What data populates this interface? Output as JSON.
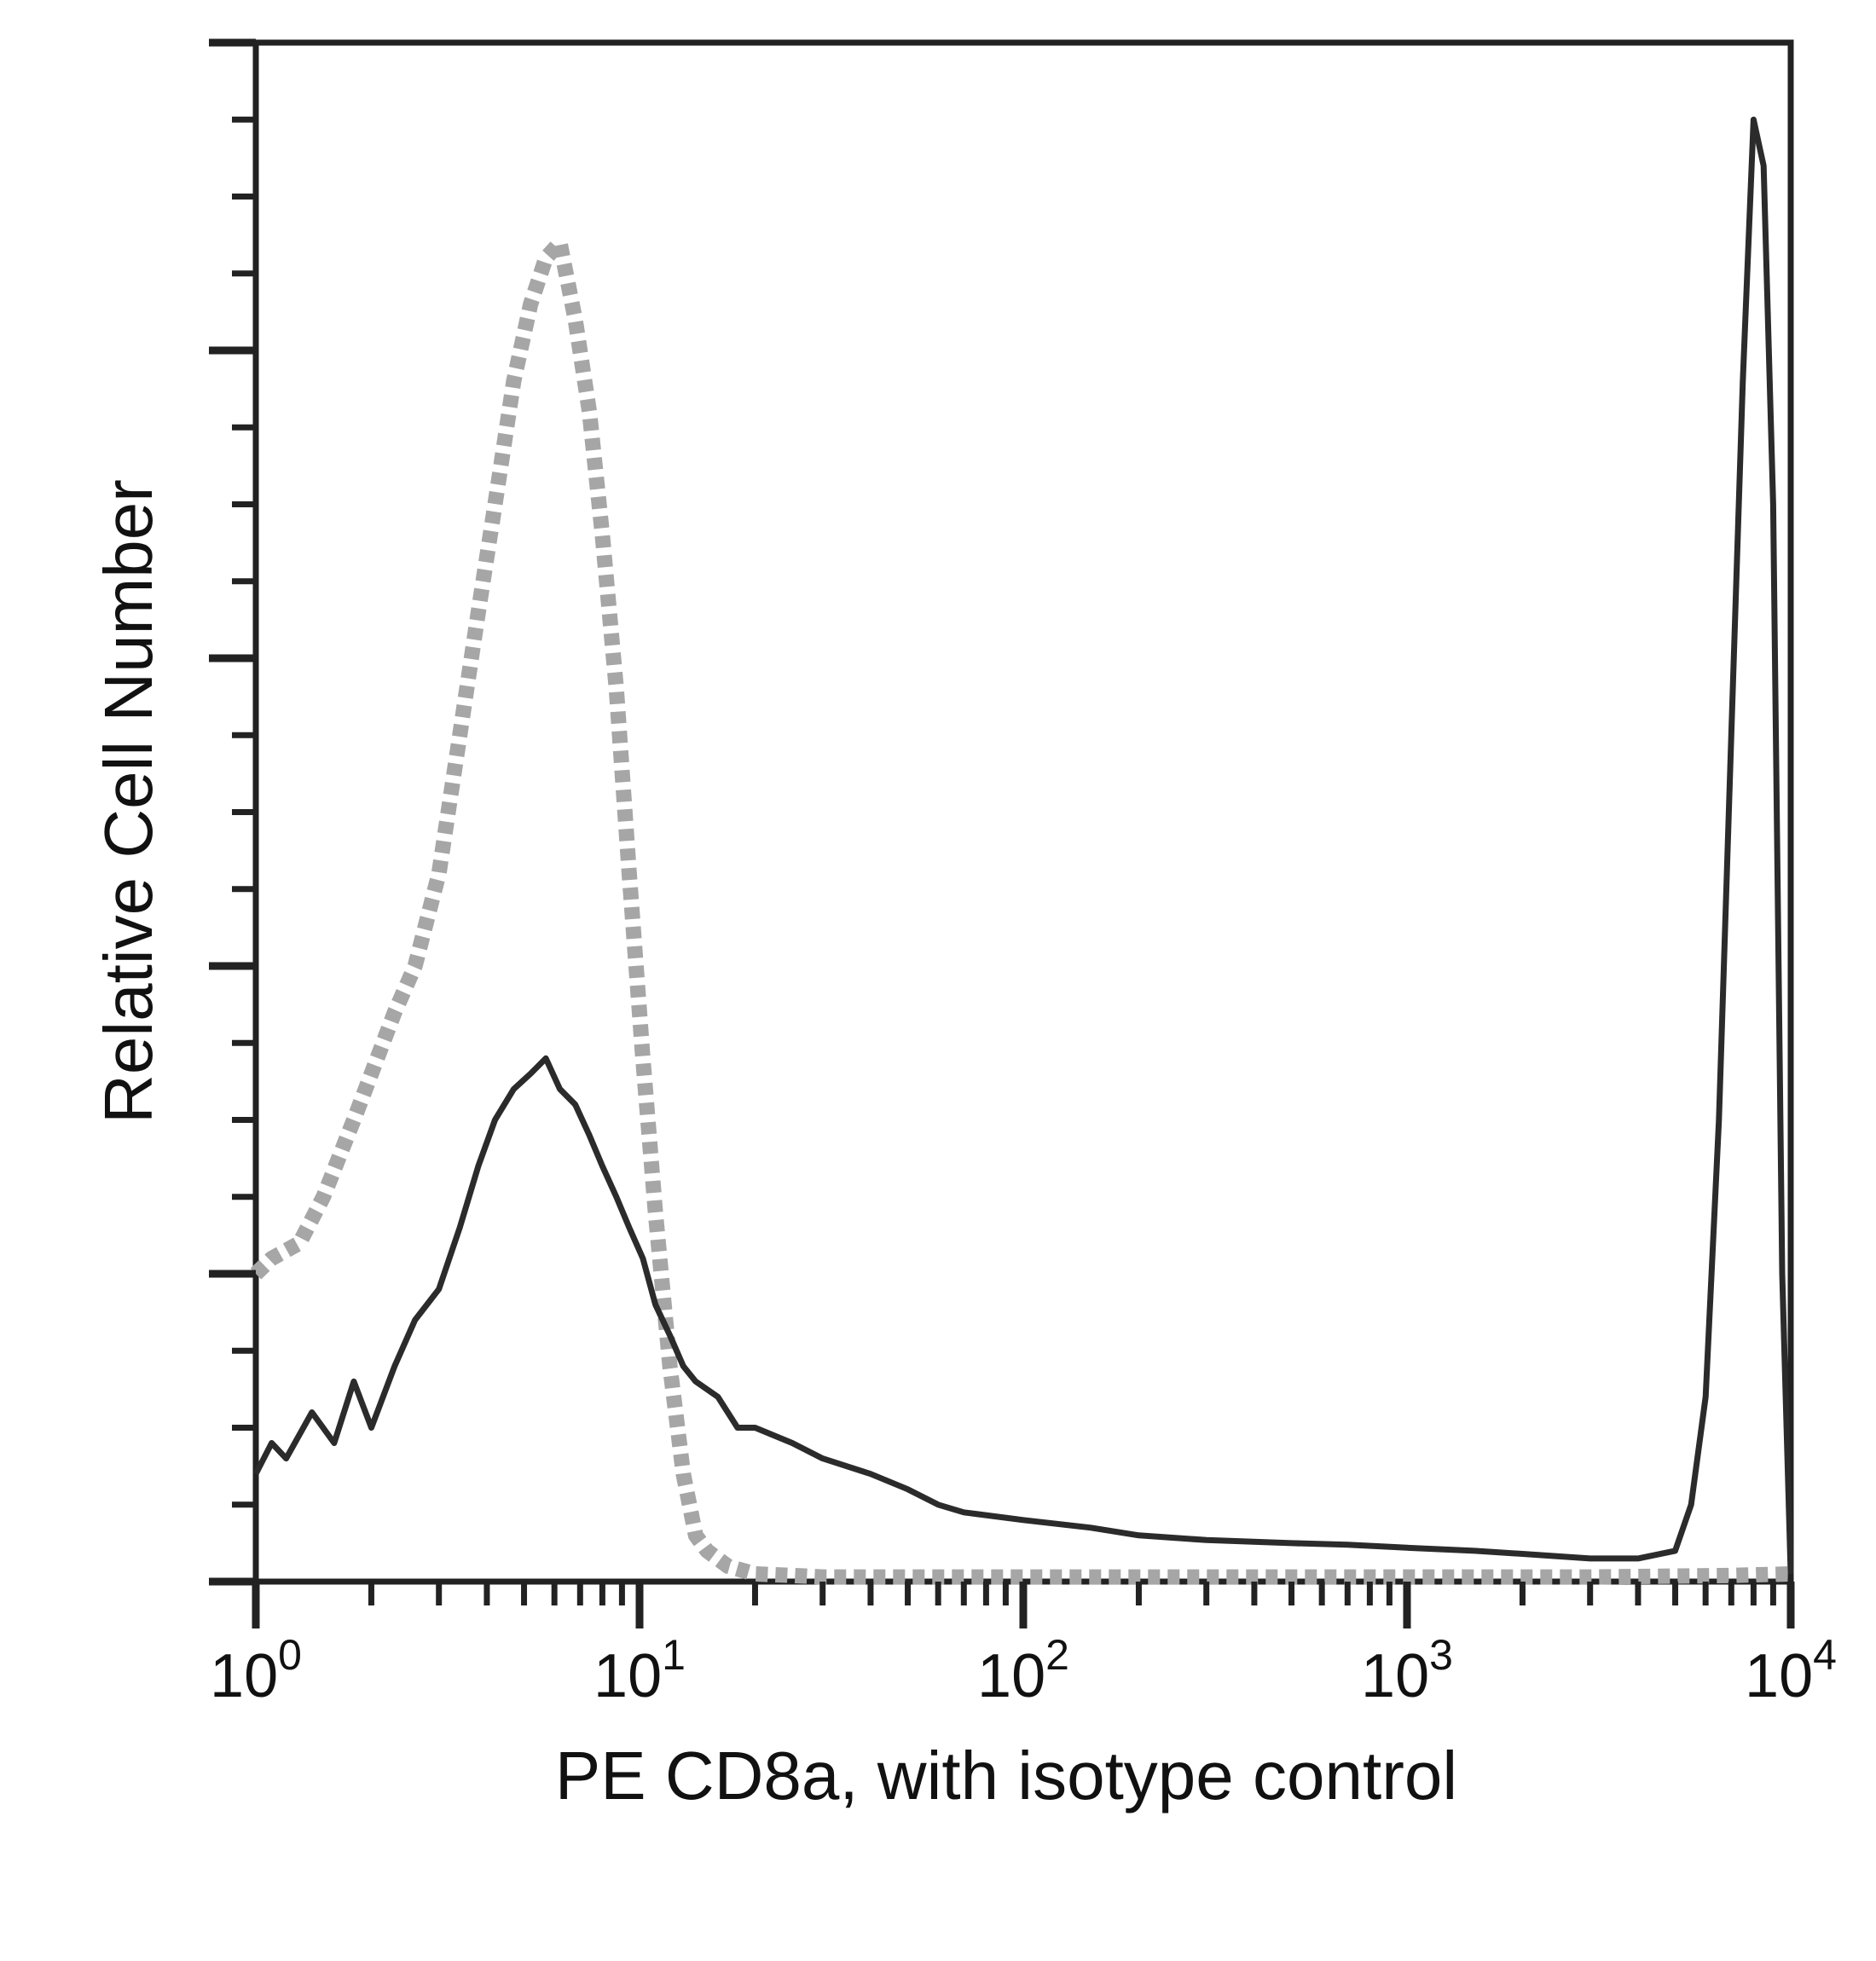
{
  "chart_data": {
    "type": "line",
    "title": "",
    "xlabel": "PE CD8a, with isotype control",
    "ylabel": "Relative Cell Number",
    "xscale": "log",
    "xlim": [
      1,
      10000
    ],
    "ylim": [
      0,
      100
    ],
    "x_ticks": [
      {
        "base": "10",
        "exp": "0"
      },
      {
        "base": "10",
        "exp": "1"
      },
      {
        "base": "10",
        "exp": "2"
      },
      {
        "base": "10",
        "exp": "3"
      },
      {
        "base": "10",
        "exp": "4"
      }
    ],
    "grid": false,
    "legend": "none",
    "series": [
      {
        "role": "isotype control",
        "color": "#a6a6a6",
        "style": "dotted",
        "x": [
          1.0,
          1.1,
          1.3,
          1.5,
          1.8,
          2.0,
          2.3,
          2.6,
          3.0,
          3.4,
          3.8,
          4.2,
          4.7,
          5.2,
          5.7,
          6.2,
          6.8,
          7.4,
          8.0,
          8.7,
          9.4,
          10.2,
          11.0,
          12.0,
          13.0,
          14.0,
          15.0,
          17.0,
          20.0,
          25.0,
          30.0,
          50.0,
          100.0,
          300.0,
          1000.0,
          3000.0,
          7000.0,
          10000.0
        ],
        "y": [
          20,
          21,
          22,
          25,
          30,
          33,
          37,
          40,
          46,
          55,
          63,
          70,
          78,
          83,
          86,
          87,
          82,
          76,
          68,
          58,
          46,
          34,
          24,
          14,
          7,
          3,
          2,
          1,
          0.5,
          0.4,
          0.3,
          0.3,
          0.3,
          0.3,
          0.3,
          0.3,
          0.4,
          0.5
        ]
      },
      {
        "role": "PE CD8a",
        "color": "#2b2b2b",
        "style": "solid",
        "x": [
          1.0,
          1.1,
          1.2,
          1.4,
          1.6,
          1.8,
          2.0,
          2.3,
          2.6,
          3.0,
          3.4,
          3.8,
          4.2,
          4.7,
          5.2,
          5.7,
          6.2,
          6.8,
          7.4,
          8.0,
          8.7,
          9.4,
          10.2,
          11.0,
          12.0,
          13.0,
          14.0,
          16.0,
          18.0,
          20.0,
          25.0,
          30.0,
          40.0,
          50.0,
          60.0,
          70.0,
          100.0,
          150.0,
          200.0,
          300.0,
          500.0,
          700.0,
          1000.0,
          1500.0,
          2000.0,
          3000.0,
          4000.0,
          5000.0,
          5500.0,
          6000.0,
          6500.0,
          7000.0,
          7500.0,
          8000.0,
          8500.0,
          9000.0,
          9500.0,
          10000.0
        ],
        "y": [
          7,
          9,
          8,
          11,
          9,
          13,
          10,
          14,
          17,
          19,
          23,
          27,
          30,
          32,
          33,
          34,
          32,
          31,
          29,
          27,
          25,
          23,
          21,
          18,
          16,
          14,
          13,
          12,
          10,
          10,
          9,
          8,
          7,
          6,
          5,
          4.5,
          4,
          3.5,
          3,
          2.7,
          2.5,
          2.4,
          2.2,
          2.0,
          1.8,
          1.5,
          1.5,
          2,
          5,
          12,
          30,
          55,
          78,
          95,
          92,
          70,
          20,
          0.5
        ]
      }
    ]
  }
}
